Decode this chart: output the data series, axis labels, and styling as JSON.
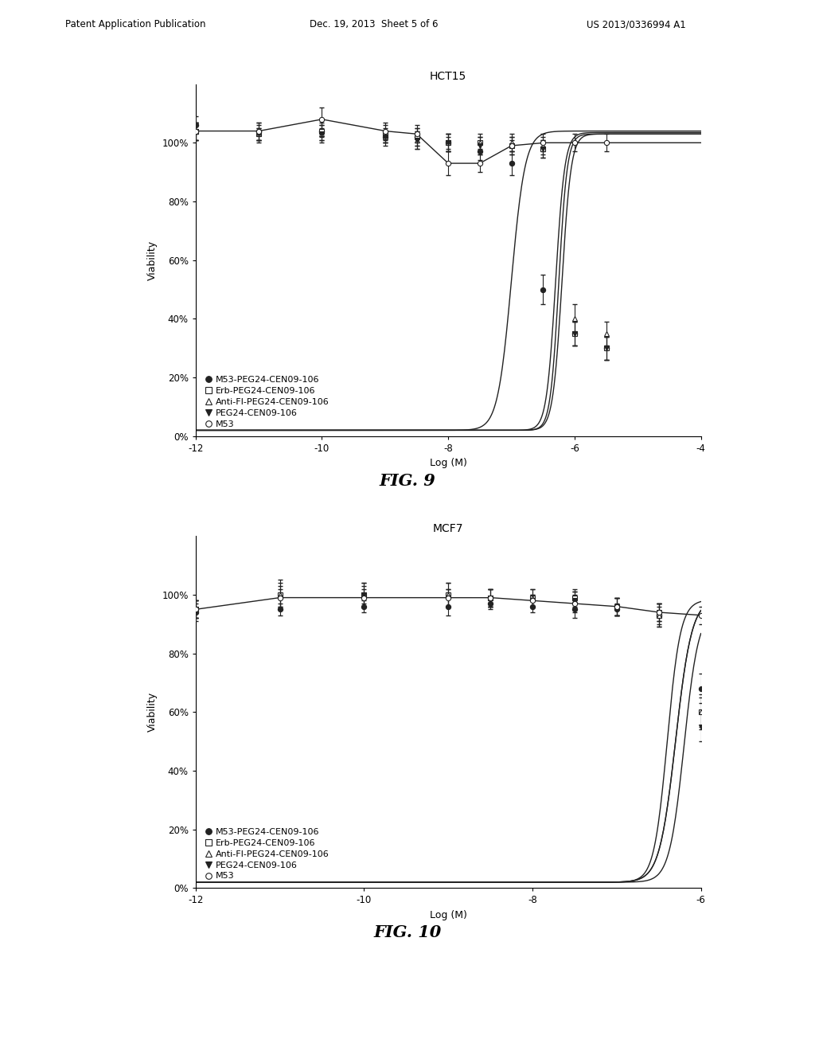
{
  "fig_width": 10.24,
  "fig_height": 13.2,
  "background_color": "#ffffff",
  "header_text": "Patent Application Publication",
  "header_date": "Dec. 19, 2013  Sheet 5 of 6",
  "header_patent": "US 2013/0336994 A1",
  "plot1": {
    "title": "HCT15",
    "xlabel": "Log (M)",
    "ylabel": "Viability",
    "xlim": [
      -12,
      -4
    ],
    "ylim": [
      0,
      120
    ],
    "xticks": [
      -12,
      -10,
      -8,
      -6,
      -4
    ],
    "yticks": [
      0,
      20,
      40,
      60,
      80,
      100
    ],
    "ytick_labels": [
      "0%",
      "20%",
      "40%",
      "60%",
      "80%",
      "100%"
    ],
    "fig_label": "FIG. 9",
    "series": [
      {
        "label": "M53-PEG24-CEN09-106",
        "marker": "o",
        "fillstyle": "full",
        "color": "#222222",
        "x": [
          -12,
          -11,
          -10,
          -9,
          -8.5,
          -8,
          -7.5,
          -7,
          -6.5,
          -6,
          -5.5
        ],
        "y": [
          106,
          104,
          104,
          102,
          102,
          100,
          97,
          93,
          50,
          35,
          30
        ],
        "yerr": [
          3,
          3,
          3,
          2,
          3,
          3,
          3,
          4,
          5,
          4,
          4
        ],
        "ec50": -7.0,
        "slope": 4.0
      },
      {
        "label": "Erb-PEG24-CEN09-106",
        "marker": "s",
        "fillstyle": "none",
        "color": "#222222",
        "x": [
          -12,
          -11,
          -10,
          -9,
          -8.5,
          -8,
          -7.5,
          -7,
          -6.5,
          -6,
          -5.5
        ],
        "y": [
          104,
          103,
          104,
          103,
          102,
          100,
          100,
          99,
          98,
          35,
          30
        ],
        "yerr": [
          3,
          3,
          2,
          3,
          3,
          3,
          3,
          3,
          3,
          4,
          4
        ],
        "ec50": -6.3,
        "slope": 6.0
      },
      {
        "label": "Anti-FI-PEG24-CEN09-106",
        "marker": "^",
        "fillstyle": "none",
        "color": "#222222",
        "x": [
          -12,
          -11,
          -10,
          -9,
          -8.5,
          -8,
          -7.5,
          -7,
          -6.5,
          -6,
          -5.5
        ],
        "y": [
          104,
          103,
          103,
          102,
          101,
          100,
          100,
          100,
          99,
          40,
          35
        ],
        "yerr": [
          3,
          2,
          3,
          2,
          3,
          3,
          2,
          3,
          3,
          5,
          4
        ],
        "ec50": -6.2,
        "slope": 6.0
      },
      {
        "label": "PEG24-CEN09-106",
        "marker": "v",
        "fillstyle": "full",
        "color": "#222222",
        "x": [
          -12,
          -11,
          -10,
          -9,
          -8.5,
          -8,
          -7.5,
          -7,
          -6.5,
          -6,
          -5.5
        ],
        "y": [
          104,
          103,
          103,
          102,
          101,
          100,
          99,
          99,
          98,
          35,
          30
        ],
        "yerr": [
          3,
          2,
          2,
          3,
          3,
          2,
          3,
          2,
          3,
          4,
          4
        ],
        "ec50": -6.25,
        "slope": 6.5
      },
      {
        "label": "M53",
        "marker": "o",
        "fillstyle": "none",
        "color": "#222222",
        "x": [
          -12,
          -11,
          -10,
          -9,
          -8.5,
          -8,
          -7.5,
          -7,
          -6.5,
          -6,
          -5.5
        ],
        "y": [
          104,
          104,
          108,
          104,
          103,
          93,
          93,
          99,
          100,
          100,
          100
        ],
        "yerr": [
          3,
          3,
          4,
          3,
          3,
          4,
          3,
          3,
          3,
          3,
          3
        ],
        "ec50": null,
        "slope": null
      }
    ]
  },
  "plot2": {
    "title": "MCF7",
    "xlabel": "Log (M)",
    "ylabel": "Viability",
    "xlim": [
      -12,
      -6
    ],
    "ylim": [
      0,
      120
    ],
    "xticks": [
      -12,
      -10,
      -8,
      -6
    ],
    "yticks": [
      0,
      20,
      40,
      60,
      80,
      100
    ],
    "ytick_labels": [
      "0%",
      "20%",
      "40%",
      "60%",
      "80%",
      "100%"
    ],
    "fig_label": "FIG. 10",
    "series": [
      {
        "label": "M53-PEG24-CEN09-106",
        "marker": "o",
        "fillstyle": "full",
        "color": "#222222",
        "x": [
          -12,
          -11,
          -10,
          -9,
          -8.5,
          -8,
          -7.5,
          -7,
          -6.5,
          -6
        ],
        "y": [
          94,
          95,
          96,
          96,
          97,
          96,
          95,
          95,
          93,
          68
        ],
        "yerr": [
          3,
          2,
          2,
          3,
          2,
          2,
          3,
          2,
          3,
          5
        ],
        "ec50": -6.2,
        "slope": 5.0
      },
      {
        "label": "Erb-PEG24-CEN09-106",
        "marker": "s",
        "fillstyle": "none",
        "color": "#222222",
        "x": [
          -12,
          -11,
          -10,
          -9,
          -8.5,
          -8,
          -7.5,
          -7,
          -6.5,
          -6
        ],
        "y": [
          95,
          100,
          100,
          100,
          99,
          99,
          99,
          96,
          93,
          60
        ],
        "yerr": [
          3,
          5,
          4,
          4,
          3,
          3,
          3,
          3,
          4,
          5
        ],
        "ec50": -6.3,
        "slope": 4.5
      },
      {
        "label": "Anti-FI-PEG24-CEN09-106",
        "marker": "^",
        "fillstyle": "none",
        "color": "#222222",
        "x": [
          -12,
          -11,
          -10,
          -9,
          -8.5,
          -8,
          -7.5,
          -7,
          -6.5,
          -6
        ],
        "y": [
          95,
          100,
          100,
          100,
          99,
          99,
          98,
          96,
          93,
          60
        ],
        "yerr": [
          3,
          4,
          4,
          4,
          3,
          3,
          3,
          3,
          4,
          6
        ],
        "ec50": -6.3,
        "slope": 4.5
      },
      {
        "label": "PEG24-CEN09-106",
        "marker": "v",
        "fillstyle": "full",
        "color": "#222222",
        "x": [
          -12,
          -11,
          -10,
          -9,
          -8.5,
          -8,
          -7.5,
          -7,
          -6.5,
          -6
        ],
        "y": [
          95,
          99,
          100,
          99,
          99,
          98,
          98,
          96,
          94,
          55
        ],
        "yerr": [
          3,
          4,
          3,
          3,
          3,
          2,
          3,
          3,
          3,
          5
        ],
        "ec50": -6.4,
        "slope": 5.5
      },
      {
        "label": "M53",
        "marker": "o",
        "fillstyle": "none",
        "color": "#222222",
        "x": [
          -12,
          -11,
          -10,
          -9,
          -8.5,
          -8,
          -7.5,
          -7,
          -6.5,
          -6
        ],
        "y": [
          95,
          99,
          99,
          99,
          99,
          98,
          97,
          96,
          94,
          93
        ],
        "yerr": [
          3,
          3,
          3,
          3,
          3,
          2,
          3,
          3,
          3,
          3
        ],
        "ec50": null,
        "slope": null
      }
    ]
  }
}
